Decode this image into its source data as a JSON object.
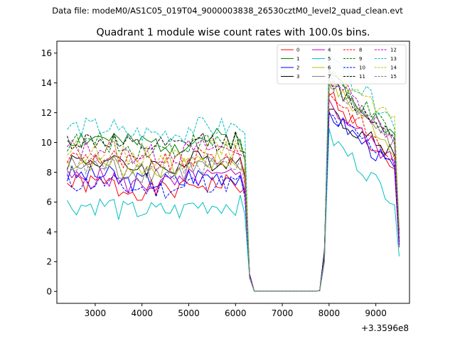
{
  "suptitle": "Data file: modeM0/AS1C05_019T04_9000003838_26530cztM0_level2_quad_clean.evt",
  "chart_data": {
    "type": "line",
    "title": "Quadrant 1 module wise count rates with 100.0s bins.",
    "xlabel": "",
    "ylabel": "",
    "x_offset_label": "+3.3596e8",
    "xlim": [
      2180,
      9720
    ],
    "ylim": [
      -0.8,
      16.8
    ],
    "xticks": [
      3000,
      4000,
      5000,
      6000,
      7000,
      8000,
      9000
    ],
    "xtick_labels": [
      "3000",
      "4000",
      "5000",
      "6000",
      "7000",
      "8000",
      "9000"
    ],
    "yticks": [
      0,
      2,
      4,
      6,
      8,
      10,
      12,
      14,
      16
    ],
    "ytick_labels": [
      "0",
      "2",
      "4",
      "6",
      "8",
      "10",
      "12",
      "14",
      "16"
    ],
    "legend_position": "top-right",
    "x_start": 2400,
    "x_step": 100,
    "series": [
      {
        "name": "0",
        "color": "#ff0000",
        "dash": "solid",
        "base": 7.2,
        "peak": 13.4,
        "end": 7.8,
        "seed": 1
      },
      {
        "name": "1",
        "color": "#008000",
        "dash": "solid",
        "base": 10.3,
        "peak": 14.8,
        "end": 10.3,
        "seed": 2
      },
      {
        "name": "2",
        "color": "#0000ff",
        "dash": "solid",
        "base": 7.8,
        "peak": 12.0,
        "end": 8.2,
        "seed": 3
      },
      {
        "name": "3",
        "color": "#000000",
        "dash": "solid",
        "base": 8.8,
        "peak": 12.0,
        "end": 9.2,
        "seed": 4
      },
      {
        "name": "4",
        "color": "#bf00bf",
        "dash": "solid",
        "base": 7.6,
        "peak": 12.5,
        "end": 8.6,
        "seed": 5
      },
      {
        "name": "5",
        "color": "#00bfbf",
        "dash": "solid",
        "base": 5.8,
        "peak": 10.4,
        "end": 6.2,
        "seed": 6
      },
      {
        "name": "6",
        "color": "#bfbf00",
        "dash": "solid",
        "base": 8.7,
        "peak": 14.0,
        "end": 9.6,
        "seed": 7
      },
      {
        "name": "7",
        "color": "#808080",
        "dash": "solid",
        "base": 8.4,
        "peak": 14.2,
        "end": 9.8,
        "seed": 8
      },
      {
        "name": "8",
        "color": "#ff0000",
        "dash": "dashed",
        "base": 9.0,
        "peak": 13.5,
        "end": 8.8,
        "seed": 9
      },
      {
        "name": "9",
        "color": "#008000",
        "dash": "dashed",
        "base": 10.0,
        "peak": 14.5,
        "end": 10.4,
        "seed": 10
      },
      {
        "name": "10",
        "color": "#0000ff",
        "dash": "dashed",
        "base": 7.3,
        "peak": 11.8,
        "end": 8.8,
        "seed": 11
      },
      {
        "name": "11",
        "color": "#000000",
        "dash": "dashed",
        "base": 10.1,
        "peak": 14.0,
        "end": 10.4,
        "seed": 12
      },
      {
        "name": "12",
        "color": "#bf00bf",
        "dash": "dashed",
        "base": 9.6,
        "peak": 14.6,
        "end": 10.2,
        "seed": 13
      },
      {
        "name": "13",
        "color": "#00bfbf",
        "dash": "dashed",
        "base": 11.0,
        "peak": 15.6,
        "end": 11.4,
        "seed": 14
      },
      {
        "name": "14",
        "color": "#bfbf00",
        "dash": "dashed",
        "base": 9.5,
        "peak": 15.0,
        "end": 11.2,
        "seed": 15
      },
      {
        "name": "15",
        "color": "#808080",
        "dash": "dashed",
        "base": 8.5,
        "peak": 14.2,
        "end": 10.0,
        "seed": 16
      }
    ]
  }
}
